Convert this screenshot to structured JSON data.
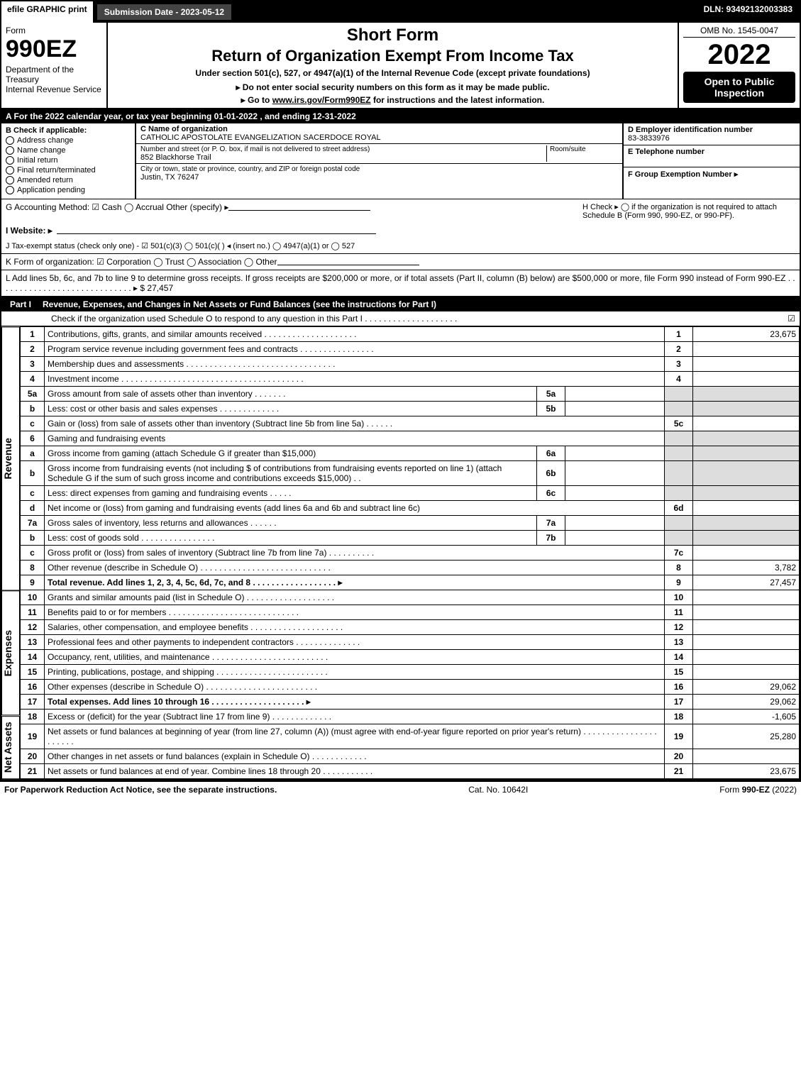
{
  "topbar": {
    "efile": "efile GRAPHIC print",
    "submission": "Submission Date - 2023-05-12",
    "dln": "DLN: 93492132003383"
  },
  "header": {
    "form_word": "Form",
    "form_number": "990EZ",
    "dept": "Department of the Treasury\nInternal Revenue Service",
    "title1": "Short Form",
    "title2": "Return of Organization Exempt From Income Tax",
    "subtitle1": "Under section 501(c), 527, or 4947(a)(1) of the Internal Revenue Code (except private foundations)",
    "subtitle2": "▸ Do not enter social security numbers on this form as it may be made public.",
    "subtitle3_prefix": "▸ Go to ",
    "subtitle3_link": "www.irs.gov/Form990EZ",
    "subtitle3_suffix": " for instructions and the latest information.",
    "omb": "OMB No. 1545-0047",
    "year": "2022",
    "badge": "Open to Public Inspection"
  },
  "rowA": "A  For the 2022 calendar year, or tax year beginning 01-01-2022 , and ending 12-31-2022",
  "sectionB": {
    "title": "B  Check if applicable:",
    "opts": [
      "Address change",
      "Name change",
      "Initial return",
      "Final return/terminated",
      "Amended return",
      "Application pending"
    ]
  },
  "sectionC": {
    "name_lbl": "C Name of organization",
    "name": "CATHOLIC APOSTOLATE EVANGELIZATION SACERDOCE ROYAL",
    "street_lbl": "Number and street (or P. O. box, if mail is not delivered to street address)",
    "street": "852 Blackhorse Trail",
    "room_lbl": "Room/suite",
    "city_lbl": "City or town, state or province, country, and ZIP or foreign postal code",
    "city": "Justin, TX  76247"
  },
  "sectionRight": {
    "d_lbl": "D Employer identification number",
    "d_val": "83-3833976",
    "e_lbl": "E Telephone number",
    "f_lbl": "F Group Exemption Number  ▸"
  },
  "lineG": "G Accounting Method:   ☑ Cash   ◯ Accrual   Other (specify) ▸",
  "lineH": "H   Check ▸  ◯  if the organization is not required to attach Schedule B (Form 990, 990-EZ, or 990-PF).",
  "lineI": "I Website: ▸",
  "lineJ": "J Tax-exempt status (check only one) -  ☑ 501(c)(3)  ◯ 501(c)(  ) ◂ (insert no.)  ◯ 4947(a)(1) or  ◯ 527",
  "lineK": "K Form of organization:   ☑ Corporation   ◯ Trust   ◯ Association   ◯ Other",
  "lineL": {
    "text": "L Add lines 5b, 6c, and 7b to line 9 to determine gross receipts. If gross receipts are $200,000 or more, or if total assets (Part II, column (B) below) are $500,000 or more, file Form 990 instead of Form 990-EZ . . . . . . . . . . . . . . . . . . . . . . . . . . . . . ▸ $",
    "amount": "27,457"
  },
  "part1": {
    "label": "Part I",
    "title": "Revenue, Expenses, and Changes in Net Assets or Fund Balances (see the instructions for Part I)",
    "check": "Check if the organization used Schedule O to respond to any question in this Part I . . . . . . . . . . . . . . . . . . . .",
    "checked": "☑"
  },
  "sections": {
    "revenue": "Revenue",
    "expenses": "Expenses",
    "netassets": "Net Assets"
  },
  "rows": [
    {
      "n": "1",
      "d": "Contributions, gifts, grants, and similar amounts received . . . . . . . . . . . . . . . . . . . .",
      "c": "1",
      "a": "23,675"
    },
    {
      "n": "2",
      "d": "Program service revenue including government fees and contracts . . . . . . . . . . . . . . . .",
      "c": "2",
      "a": ""
    },
    {
      "n": "3",
      "d": "Membership dues and assessments . . . . . . . . . . . . . . . . . . . . . . . . . . . . . . . .",
      "c": "3",
      "a": ""
    },
    {
      "n": "4",
      "d": "Investment income . . . . . . . . . . . . . . . . . . . . . . . . . . . . . . . . . . . . . . .",
      "c": "4",
      "a": ""
    },
    {
      "n": "5a",
      "d": "Gross amount from sale of assets other than inventory . . . . . . .",
      "sn": "5a",
      "sv": "",
      "grey": true
    },
    {
      "n": "b",
      "d": "Less: cost or other basis and sales expenses . . . . . . . . . . . . .",
      "sn": "5b",
      "sv": "",
      "grey": true
    },
    {
      "n": "c",
      "d": "Gain or (loss) from sale of assets other than inventory (Subtract line 5b from line 5a) . . . . . .",
      "c": "5c",
      "a": ""
    },
    {
      "n": "6",
      "d": "Gaming and fundraising events",
      "grey": true
    },
    {
      "n": "a",
      "d": "Gross income from gaming (attach Schedule G if greater than $15,000)",
      "sn": "6a",
      "sv": "",
      "grey": true
    },
    {
      "n": "b",
      "d": "Gross income from fundraising events (not including $                     of contributions from fundraising events reported on line 1) (attach Schedule G if the sum of such gross income and contributions exceeds $15,000)   . .",
      "sn": "6b",
      "sv": "",
      "grey": true
    },
    {
      "n": "c",
      "d": "Less: direct expenses from gaming and fundraising events   . . . . .",
      "sn": "6c",
      "sv": "",
      "grey": true
    },
    {
      "n": "d",
      "d": "Net income or (loss) from gaming and fundraising events (add lines 6a and 6b and subtract line 6c)",
      "c": "6d",
      "a": ""
    },
    {
      "n": "7a",
      "d": "Gross sales of inventory, less returns and allowances . . . . . .",
      "sn": "7a",
      "sv": "",
      "grey": true
    },
    {
      "n": "b",
      "d": "Less: cost of goods sold       . . . . . . . . . . . . . . . .",
      "sn": "7b",
      "sv": "",
      "grey": true
    },
    {
      "n": "c",
      "d": "Gross profit or (loss) from sales of inventory (Subtract line 7b from line 7a) . . . . . . . . . .",
      "c": "7c",
      "a": ""
    },
    {
      "n": "8",
      "d": "Other revenue (describe in Schedule O) . . . . . . . . . . . . . . . . . . . . . . . . . . . .",
      "c": "8",
      "a": "3,782"
    },
    {
      "n": "9",
      "d": "Total revenue. Add lines 1, 2, 3, 4, 5c, 6d, 7c, and 8  . . . . . . . . . . . . . . . . . .  ▸",
      "c": "9",
      "a": "27,457",
      "bold": true
    },
    {
      "n": "10",
      "d": "Grants and similar amounts paid (list in Schedule O) . . . . . . . . . . . . . . . . . . .",
      "c": "10",
      "a": ""
    },
    {
      "n": "11",
      "d": "Benefits paid to or for members    . . . . . . . . . . . . . . . . . . . . . . . . . . . .",
      "c": "11",
      "a": ""
    },
    {
      "n": "12",
      "d": "Salaries, other compensation, and employee benefits . . . . . . . . . . . . . . . . . . . .",
      "c": "12",
      "a": ""
    },
    {
      "n": "13",
      "d": "Professional fees and other payments to independent contractors . . . . . . . . . . . . . .",
      "c": "13",
      "a": ""
    },
    {
      "n": "14",
      "d": "Occupancy, rent, utilities, and maintenance . . . . . . . . . . . . . . . . . . . . . . . . .",
      "c": "14",
      "a": ""
    },
    {
      "n": "15",
      "d": "Printing, publications, postage, and shipping . . . . . . . . . . . . . . . . . . . . . . . .",
      "c": "15",
      "a": ""
    },
    {
      "n": "16",
      "d": "Other expenses (describe in Schedule O)    . . . . . . . . . . . . . . . . . . . . . . . .",
      "c": "16",
      "a": "29,062"
    },
    {
      "n": "17",
      "d": "Total expenses. Add lines 10 through 16     . . . . . . . . . . . . . . . . . . . .  ▸",
      "c": "17",
      "a": "29,062",
      "bold": true
    },
    {
      "n": "18",
      "d": "Excess or (deficit) for the year (Subtract line 17 from line 9)       . . . . . . . . . . . . .",
      "c": "18",
      "a": "-1,605"
    },
    {
      "n": "19",
      "d": "Net assets or fund balances at beginning of year (from line 27, column (A)) (must agree with end-of-year figure reported on prior year's return) . . . . . . . . . . . . . . . . . . . . . .",
      "c": "19",
      "a": "25,280"
    },
    {
      "n": "20",
      "d": "Other changes in net assets or fund balances (explain in Schedule O) . . . . . . . . . . . .",
      "c": "20",
      "a": ""
    },
    {
      "n": "21",
      "d": "Net assets or fund balances at end of year. Combine lines 18 through 20 . . . . . . . . . . .",
      "c": "21",
      "a": "23,675"
    }
  ],
  "footer": {
    "left": "For Paperwork Reduction Act Notice, see the separate instructions.",
    "mid": "Cat. No. 10642I",
    "right_pre": "Form ",
    "right_b": "990-EZ",
    "right_suf": " (2022)"
  }
}
